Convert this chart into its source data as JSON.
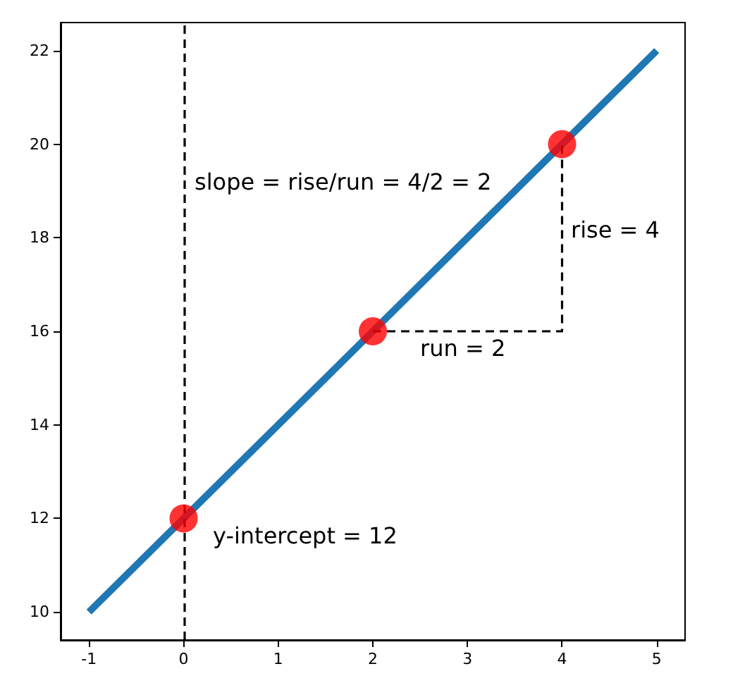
{
  "chart_data": {
    "type": "line",
    "marker": "none",
    "grid": false,
    "xlim": [
      -1.3,
      5.3
    ],
    "xticks": [
      -1,
      0,
      1,
      2,
      3,
      4,
      5
    ],
    "ylim": [
      9.4,
      22.6
    ],
    "yticks": [
      10,
      12,
      14,
      16,
      18,
      20,
      22
    ],
    "series": [
      {
        "color": "#1f77b4",
        "x": [
          -1,
          5
        ],
        "values": [
          10,
          22
        ]
      },
      {
        "type": "scatter",
        "marker": "circle",
        "color": "#ff0000",
        "x": [
          0,
          2,
          4
        ],
        "values": [
          12,
          16,
          20
        ]
      },
      {
        "color": "#000000",
        "line_style": "dashed",
        "x": [
          2,
          4,
          4
        ],
        "values": [
          16,
          16,
          20
        ]
      }
    ],
    "ref_lines": [
      {
        "axis": "x",
        "value": 0,
        "color": "#000000",
        "line_style": "dashed"
      }
    ],
    "annotations": [
      "slope = rise/run = 4/2 = 2",
      "rise = 4",
      "run = 2",
      "y-intercept = 12"
    ]
  }
}
